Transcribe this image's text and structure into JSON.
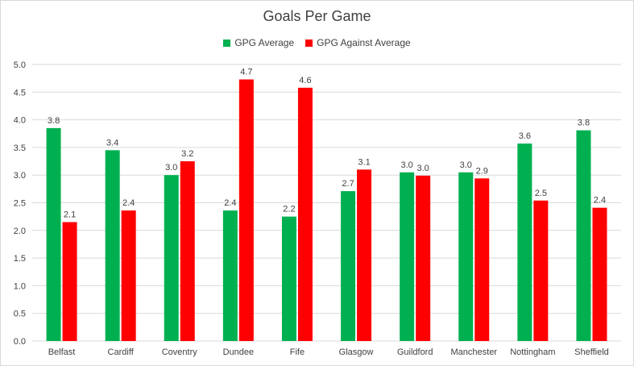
{
  "chart_data": {
    "type": "bar",
    "title": "Goals Per Game",
    "categories": [
      "Belfast",
      "Cardiff",
      "Coventry",
      "Dundee",
      "Fife",
      "Glasgow",
      "Guildford",
      "Manchester",
      "Nottingham",
      "Sheffield"
    ],
    "series": [
      {
        "name": "GPG Average",
        "color": "#00b050",
        "values": [
          3.85,
          3.45,
          3.0,
          2.36,
          2.25,
          2.71,
          3.05,
          3.05,
          3.57,
          3.81
        ],
        "labels": [
          "3.8",
          "3.4",
          "3.0",
          "2.4",
          "2.2",
          "2.7",
          "3.0",
          "3.0",
          "3.6",
          "3.8"
        ]
      },
      {
        "name": "GPG Against Average",
        "color": "#ff0000",
        "values": [
          2.15,
          2.36,
          3.25,
          4.73,
          4.58,
          3.1,
          2.99,
          2.94,
          2.54,
          2.41
        ],
        "labels": [
          "2.1",
          "2.4",
          "3.2",
          "4.7",
          "4.6",
          "3.1",
          "3.0",
          "2.9",
          "2.5",
          "2.4"
        ]
      }
    ],
    "yticks": [
      "0.0",
      "0.5",
      "1.0",
      "1.5",
      "2.0",
      "2.5",
      "3.0",
      "3.5",
      "4.0",
      "4.5",
      "5.0"
    ],
    "ylim": [
      0,
      5
    ],
    "grid": true,
    "legend_position": "top"
  }
}
